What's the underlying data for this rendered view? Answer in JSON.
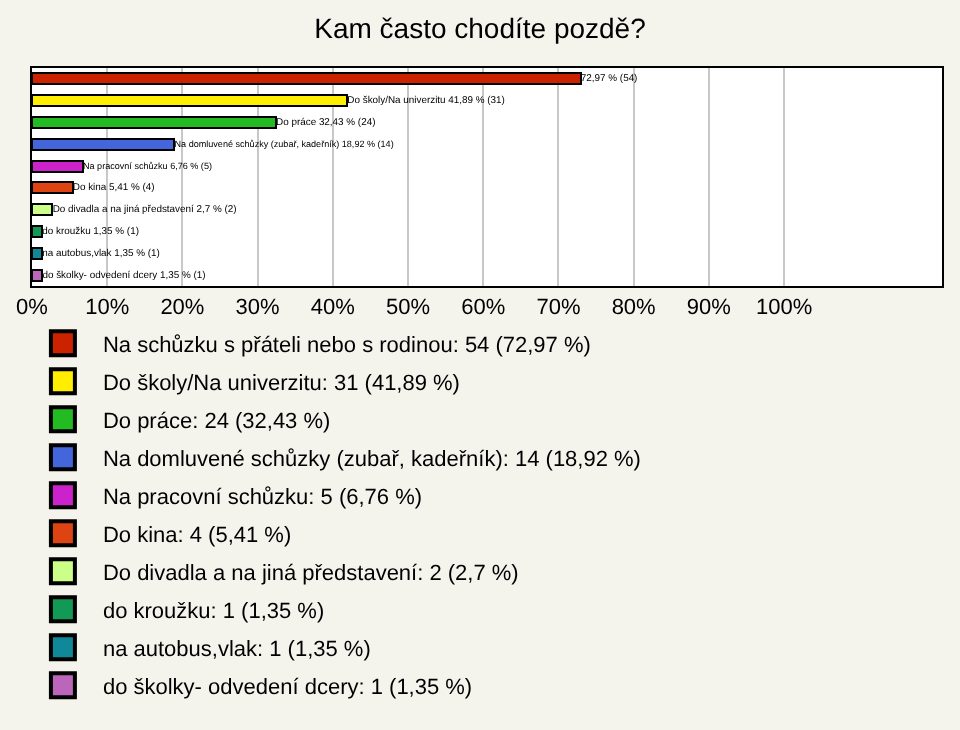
{
  "chart_data": {
    "type": "bar",
    "orientation": "horizontal",
    "stacked": true,
    "title": "Kam často chodíte pozdě?",
    "categories": [
      null,
      null,
      null,
      null,
      null,
      null,
      null,
      null,
      null,
      null
    ],
    "series": [
      {
        "name": "Na schůzku s přáteli nebo s rodinou: 54 (72,97 %)",
        "color": "#cc2200",
        "values": [
          72.97,
          null,
          null,
          null,
          null,
          null,
          null,
          null,
          null,
          null
        ],
        "value_labels": [
          "72,97 % (54)",
          null,
          null,
          null,
          null,
          null,
          null,
          null,
          null,
          null
        ]
      },
      {
        "name": "Do školy/Na univerzitu: 31 (41,89 %)",
        "color": "#ffee00",
        "values": [
          null,
          41.89,
          null,
          null,
          null,
          null,
          null,
          null,
          null,
          null
        ],
        "value_labels": [
          null,
          "Do školy/Na univerzitu 41,89 % (31)",
          null,
          null,
          null,
          null,
          null,
          null,
          null,
          null
        ]
      },
      {
        "name": "Do práce: 24 (32,43 %)",
        "color": "#22bb22",
        "values": [
          null,
          null,
          32.43,
          null,
          null,
          null,
          null,
          null,
          null,
          null
        ],
        "value_labels": [
          null,
          null,
          "Do práce 32,43 % (24)",
          null,
          null,
          null,
          null,
          null,
          null,
          null
        ]
      },
      {
        "name": "Na domluvené schůzky (zubař, kadeřník): 14 (18,92 %)",
        "color": "#4466dd",
        "values": [
          null,
          null,
          null,
          18.92,
          null,
          null,
          null,
          null,
          null,
          null
        ],
        "value_labels": [
          null,
          null,
          null,
          "Na domluvené schůzky (zubař, kadeřník) 18,92 % (14)",
          null,
          null,
          null,
          null,
          null,
          null
        ]
      },
      {
        "name": "Na pracovní schůzku: 5 (6,76 %)",
        "color": "#cc22cc",
        "values": [
          null,
          null,
          null,
          null,
          6.76,
          null,
          null,
          null,
          null,
          null
        ],
        "value_labels": [
          null,
          null,
          null,
          null,
          "Na pracovní schůzku 6,76 % (5)",
          null,
          null,
          null,
          null,
          null
        ]
      },
      {
        "name": "Do kina: 4 (5,41 %)",
        "color": "#dd4411",
        "values": [
          null,
          null,
          null,
          null,
          null,
          5.41,
          null,
          null,
          null,
          null
        ],
        "value_labels": [
          null,
          null,
          null,
          null,
          null,
          "Do kina 5,41 % (4)",
          null,
          null,
          null,
          null
        ]
      },
      {
        "name": "Do divadla a na jiná představení: 2 (2,7 %)",
        "color": "#ccff88",
        "values": [
          null,
          null,
          null,
          null,
          null,
          null,
          2.7,
          null,
          null,
          null
        ],
        "value_labels": [
          null,
          null,
          null,
          null,
          null,
          null,
          "Do divadla a na jiná představení 2,7 % (2)",
          null,
          null,
          null
        ]
      },
      {
        "name": "do kroužku: 1 (1,35 %)",
        "color": "#119955",
        "values": [
          null,
          null,
          null,
          null,
          null,
          null,
          null,
          1.35,
          null,
          null
        ],
        "value_labels": [
          null,
          null,
          null,
          null,
          null,
          null,
          null,
          "do kroužku 1,35 % (1)",
          null,
          null
        ]
      },
      {
        "name": "na autobus,vlak: 1 (1,35 %)",
        "color": "#118899",
        "values": [
          null,
          null,
          null,
          null,
          null,
          null,
          null,
          null,
          1.35,
          null
        ],
        "value_labels": [
          null,
          null,
          null,
          null,
          null,
          null,
          null,
          null,
          "na autobus,vlak 1,35 % (1)",
          null
        ]
      },
      {
        "name": "do školky- odvedení dcery: 1 (1,35 %)",
        "color": "#bb66bb",
        "values": [
          null,
          null,
          null,
          null,
          null,
          null,
          null,
          null,
          null,
          1.35
        ],
        "value_labels": [
          null,
          null,
          null,
          null,
          null,
          null,
          null,
          null,
          null,
          "do školky- odvedení dcery 1,35 % (1)"
        ]
      }
    ],
    "xlim": [
      0,
      121
    ],
    "xticks": [
      {
        "value": 0,
        "label": "0%"
      },
      {
        "value": 10,
        "label": "10%"
      },
      {
        "value": 20,
        "label": "20%"
      },
      {
        "value": 30,
        "label": "30%"
      },
      {
        "value": 40,
        "label": "40%"
      },
      {
        "value": 50,
        "label": "50%"
      },
      {
        "value": 60,
        "label": "60%"
      },
      {
        "value": 70,
        "label": "70%"
      },
      {
        "value": 80,
        "label": "80%"
      },
      {
        "value": 90,
        "label": "90%"
      },
      {
        "value": 100,
        "label": "100%"
      }
    ],
    "grid": "x",
    "legend": "bottom",
    "tick_labels": "x"
  }
}
